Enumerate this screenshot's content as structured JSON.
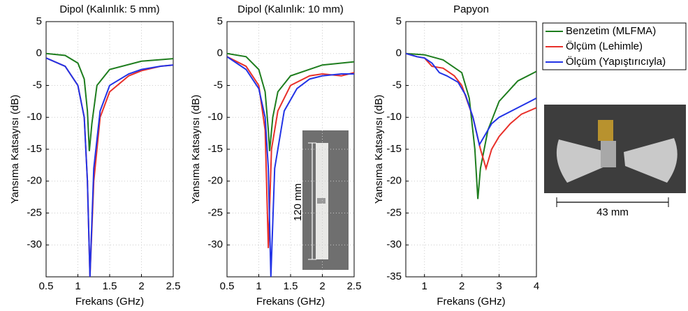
{
  "chart_data": [
    {
      "type": "line",
      "title": "Dipol (Kalınlık: 5 mm)",
      "x_label": "Frekans (GHz)",
      "y_label": "Yansıma Katsayısı (dB)",
      "xlim": [
        0.5,
        2.5
      ],
      "xticks": [
        0.5,
        1,
        1.5,
        2,
        2.5
      ],
      "ylim": [
        -35,
        5
      ],
      "yticks": [
        5,
        0,
        -5,
        -10,
        -15,
        -20,
        -25,
        -30
      ],
      "grid": true,
      "series": [
        {
          "color": "#1e7d1e",
          "x": [
            0.5,
            0.8,
            1.0,
            1.1,
            1.15,
            1.18,
            1.22,
            1.3,
            1.5,
            2.0,
            2.5
          ],
          "values": [
            0,
            -0.3,
            -1.5,
            -4,
            -9,
            -15.3,
            -11,
            -5,
            -2.5,
            -1.2,
            -0.8
          ]
        },
        {
          "color": "#e8302a",
          "x": [
            0.5,
            0.8,
            1.0,
            1.1,
            1.15,
            1.19,
            1.25,
            1.35,
            1.5,
            1.8,
            2.0,
            2.3,
            2.5
          ],
          "values": [
            -0.7,
            -2,
            -5,
            -10,
            -20,
            -35,
            -20,
            -10,
            -6,
            -3.5,
            -2.7,
            -2,
            -1.8
          ]
        },
        {
          "color": "#2233e6",
          "x": [
            0.5,
            0.8,
            1.0,
            1.1,
            1.15,
            1.19,
            1.25,
            1.35,
            1.5,
            1.8,
            2.0,
            2.3,
            2.5
          ],
          "values": [
            -0.7,
            -2,
            -5,
            -10,
            -20,
            -35,
            -18,
            -9,
            -5,
            -3.2,
            -2.5,
            -2,
            -1.8
          ]
        }
      ]
    },
    {
      "type": "line",
      "title": "Dipol (Kalınlık: 10 mm)",
      "x_label": "Frekans (GHz)",
      "y_label": "Yansıma Katsayısı (dB)",
      "xlim": [
        0.5,
        2.5
      ],
      "xticks": [
        0.5,
        1,
        1.5,
        2,
        2.5
      ],
      "ylim": [
        -35,
        5
      ],
      "yticks": [
        5,
        0,
        -5,
        -10,
        -15,
        -20,
        -25,
        -30
      ],
      "grid": true,
      "annotations": [
        "120 mm"
      ],
      "series": [
        {
          "color": "#1e7d1e",
          "x": [
            0.5,
            0.8,
            1.0,
            1.1,
            1.15,
            1.17,
            1.22,
            1.3,
            1.5,
            2.0,
            2.5
          ],
          "values": [
            0,
            -0.5,
            -2.5,
            -6,
            -12,
            -15.3,
            -10,
            -6,
            -3.5,
            -1.8,
            -1.3
          ]
        },
        {
          "color": "#e8302a",
          "x": [
            0.5,
            0.8,
            1.0,
            1.1,
            1.15,
            1.2,
            1.3,
            1.5,
            1.8,
            2.0,
            2.3,
            2.5
          ],
          "values": [
            -0.5,
            -2,
            -5,
            -12,
            -30.5,
            -15,
            -9,
            -5,
            -3.5,
            -3.2,
            -3.5,
            -3
          ]
        },
        {
          "color": "#2233e6",
          "x": [
            0.5,
            0.8,
            1.0,
            1.1,
            1.15,
            1.19,
            1.25,
            1.4,
            1.6,
            1.8,
            2.0,
            2.3,
            2.5
          ],
          "values": [
            -0.5,
            -2.5,
            -5.5,
            -10,
            -18,
            -35,
            -18,
            -9,
            -5.5,
            -4,
            -3.5,
            -3.2,
            -3.2
          ]
        }
      ]
    },
    {
      "type": "line",
      "title": "Papyon",
      "x_label": "Frekans (GHz)",
      "y_label": "Yansıma Katsayısı (dB)",
      "xlim": [
        0.5,
        4
      ],
      "xticks": [
        1,
        2,
        3,
        4
      ],
      "ylim": [
        -35,
        5
      ],
      "yticks": [
        5,
        0,
        -5,
        -10,
        -15,
        -20,
        -25,
        -30,
        -35
      ],
      "grid": true,
      "annotations": [
        "43 mm"
      ],
      "series": [
        {
          "name": "Benzetim (MLFMA)",
          "color": "#1e7d1e",
          "x": [
            0.5,
            1,
            1.5,
            2,
            2.2,
            2.35,
            2.43,
            2.5,
            2.7,
            3,
            3.5,
            4
          ],
          "values": [
            0,
            -0.2,
            -1,
            -3,
            -7,
            -15,
            -22.8,
            -18,
            -12,
            -7.5,
            -4.3,
            -2.8
          ]
        },
        {
          "name": "Ölçüm (Lehimle)",
          "color": "#e8302a",
          "x": [
            0.5,
            0.8,
            1,
            1.2,
            1.5,
            1.8,
            2,
            2.3,
            2.5,
            2.65,
            2.8,
            3,
            3.3,
            3.6,
            4
          ],
          "values": [
            0,
            -0.5,
            -0.7,
            -2,
            -2.3,
            -3.5,
            -5,
            -10,
            -15,
            -18,
            -15,
            -13,
            -11,
            -9.5,
            -8.5
          ]
        },
        {
          "name": "Ölçüm (Yapıştırıcıyla)",
          "color": "#2233e6",
          "x": [
            0.5,
            0.8,
            1,
            1.2,
            1.4,
            1.6,
            1.9,
            2.1,
            2.3,
            2.47,
            2.6,
            2.8,
            3,
            3.5,
            4
          ],
          "values": [
            0,
            -0.5,
            -0.7,
            -1.5,
            -3,
            -3.5,
            -4.5,
            -6.5,
            -10,
            -14.3,
            -13,
            -11,
            -10,
            -8.5,
            -7
          ]
        }
      ]
    }
  ]
}
